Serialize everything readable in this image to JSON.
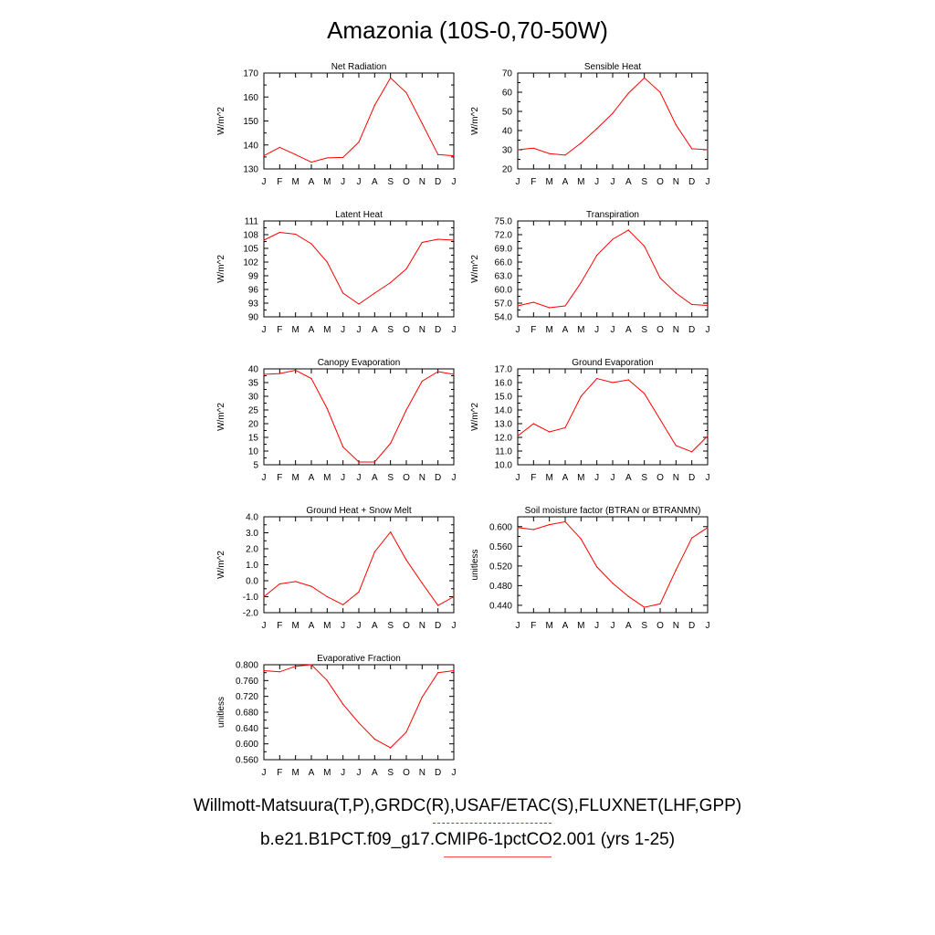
{
  "title": "Amazonia (10S-0,70-50W)",
  "legend": {
    "observations": "Willmott-Matsuura(T,P),GRDC(R),USAF/ETAC(S),FLUXNET(LHF,GPP)",
    "model": "b.e21.B1PCT.f09_g17.CMIP6-1pctCO2.001 (yrs 1-25)",
    "obs_color": "#4b4bd6",
    "model_color": "#ff0000"
  },
  "chart_data": [
    {
      "type": "line",
      "title": "Net Radiation",
      "ylabel": "W/m^2",
      "ylim": [
        130,
        170
      ],
      "yticks": [
        "130",
        "140",
        "150",
        "160",
        "170"
      ],
      "ytick_values": [
        130,
        140,
        150,
        160,
        170
      ],
      "categories": [
        "J",
        "F",
        "M",
        "A",
        "M",
        "J",
        "J",
        "A",
        "S",
        "O",
        "N",
        "D",
        "J"
      ],
      "series": [
        {
          "values": [
            135.5,
            139.0,
            136.0,
            132.8,
            134.6,
            134.8,
            141.2,
            156.5,
            168.0,
            161.8,
            149.0,
            136.0,
            135.5
          ],
          "color": "#ff0000"
        }
      ]
    },
    {
      "type": "line",
      "title": "Sensible Heat",
      "ylabel": "W/m^2",
      "ylim": [
        20,
        70
      ],
      "yticks": [
        "20",
        "30",
        "40",
        "50",
        "60",
        "70"
      ],
      "ytick_values": [
        20,
        30,
        40,
        50,
        60,
        70
      ],
      "categories": [
        "J",
        "F",
        "M",
        "A",
        "M",
        "J",
        "J",
        "A",
        "S",
        "O",
        "N",
        "D",
        "J"
      ],
      "series": [
        {
          "values": [
            30.0,
            30.8,
            28.0,
            27.2,
            33.5,
            41.0,
            49.0,
            59.5,
            67.5,
            60.0,
            43.0,
            30.5,
            30.0
          ],
          "color": "#ff0000"
        }
      ]
    },
    {
      "type": "line",
      "title": "Latent Heat",
      "ylabel": "W/m^2",
      "ylim": [
        90,
        111
      ],
      "yticks": [
        "90",
        "93",
        "96",
        "99",
        "102",
        "105",
        "108",
        "111"
      ],
      "ytick_values": [
        90,
        93,
        96,
        99,
        102,
        105,
        108,
        111
      ],
      "categories": [
        "J",
        "F",
        "M",
        "A",
        "M",
        "J",
        "J",
        "A",
        "S",
        "O",
        "N",
        "D",
        "J"
      ],
      "series": [
        {
          "values": [
            106.8,
            108.5,
            108.1,
            106.0,
            102.0,
            95.2,
            92.8,
            95.2,
            97.5,
            100.5,
            106.3,
            107.0,
            106.8
          ],
          "color": "#ff0000"
        }
      ]
    },
    {
      "type": "line",
      "title": "Transpiration",
      "ylabel": "W/m^2",
      "ylim": [
        54,
        75
      ],
      "yticks": [
        "54.0",
        "57.0",
        "60.0",
        "63.0",
        "66.0",
        "69.0",
        "72.0",
        "75.0"
      ],
      "ytick_values": [
        54,
        57,
        60,
        63,
        66,
        69,
        72,
        75
      ],
      "categories": [
        "J",
        "F",
        "M",
        "A",
        "M",
        "J",
        "J",
        "A",
        "S",
        "O",
        "N",
        "D",
        "J"
      ],
      "series": [
        {
          "values": [
            56.4,
            57.2,
            56.0,
            56.4,
            61.5,
            67.5,
            71.0,
            73.0,
            69.5,
            62.5,
            59.2,
            56.7,
            56.5
          ],
          "color": "#ff0000"
        }
      ]
    },
    {
      "type": "line",
      "title": "Canopy Evaporation",
      "ylabel": "W/m^2",
      "ylim": [
        5,
        40
      ],
      "yticks": [
        "5",
        "10",
        "15",
        "20",
        "25",
        "30",
        "35",
        "40"
      ],
      "ytick_values": [
        5,
        10,
        15,
        20,
        25,
        30,
        35,
        40
      ],
      "categories": [
        "J",
        "F",
        "M",
        "A",
        "M",
        "J",
        "J",
        "A",
        "S",
        "O",
        "N",
        "D",
        "J"
      ],
      "series": [
        {
          "values": [
            38.0,
            38.3,
            39.5,
            36.5,
            25.5,
            11.5,
            6.0,
            6.0,
            12.8,
            25.0,
            35.5,
            39.0,
            38.0
          ],
          "color": "#ff0000"
        }
      ]
    },
    {
      "type": "line",
      "title": "Ground Evaporation",
      "ylabel": "W/m^2",
      "ylim": [
        10,
        17
      ],
      "yticks": [
        "10.0",
        "11.0",
        "12.0",
        "13.0",
        "14.0",
        "15.0",
        "16.0",
        "17.0"
      ],
      "ytick_values": [
        10,
        11,
        12,
        13,
        14,
        15,
        16,
        17
      ],
      "categories": [
        "J",
        "F",
        "M",
        "A",
        "M",
        "J",
        "J",
        "A",
        "S",
        "O",
        "N",
        "D",
        "J"
      ],
      "series": [
        {
          "values": [
            12.1,
            13.0,
            12.4,
            12.7,
            15.0,
            16.3,
            16.0,
            16.2,
            15.2,
            13.3,
            11.4,
            10.95,
            12.1
          ],
          "color": "#ff0000"
        }
      ]
    },
    {
      "type": "line",
      "title": "Ground Heat + Snow Melt",
      "ylabel": "W/m^2",
      "ylim": [
        -2,
        4
      ],
      "yticks": [
        "-2.0",
        "-1.0",
        "0.0",
        "1.0",
        "2.0",
        "3.0",
        "4.0"
      ],
      "ytick_values": [
        -2,
        -1,
        0,
        1,
        2,
        3,
        4
      ],
      "categories": [
        "J",
        "F",
        "M",
        "A",
        "M",
        "J",
        "J",
        "A",
        "S",
        "O",
        "N",
        "D",
        "J"
      ],
      "series": [
        {
          "values": [
            -1.0,
            -0.2,
            -0.05,
            -0.35,
            -1.0,
            -1.5,
            -0.7,
            1.8,
            3.05,
            1.3,
            -0.15,
            -1.55,
            -1.0
          ],
          "color": "#ff0000"
        }
      ]
    },
    {
      "type": "line",
      "title": "Soil moisture factor (BTRAN or BTRANMN)",
      "ylabel": "unitless",
      "ylim": [
        0.425,
        0.62
      ],
      "yticks": [
        "0.440",
        "0.480",
        "0.520",
        "0.560",
        "0.600"
      ],
      "ytick_values": [
        0.44,
        0.48,
        0.52,
        0.56,
        0.6
      ],
      "categories": [
        "J",
        "F",
        "M",
        "A",
        "M",
        "J",
        "J",
        "A",
        "S",
        "O",
        "N",
        "D",
        "J"
      ],
      "series": [
        {
          "values": [
            0.598,
            0.594,
            0.604,
            0.61,
            0.575,
            0.518,
            0.485,
            0.458,
            0.436,
            0.443,
            0.512,
            0.577,
            0.598
          ],
          "color": "#ff0000"
        }
      ]
    },
    {
      "type": "line",
      "title": "Evaporative Fraction",
      "ylabel": "unitless",
      "ylim": [
        0.56,
        0.8
      ],
      "yticks": [
        "0.560",
        "0.600",
        "0.640",
        "0.680",
        "0.720",
        "0.760",
        "0.800"
      ],
      "ytick_values": [
        0.56,
        0.6,
        0.64,
        0.68,
        0.72,
        0.76,
        0.8
      ],
      "categories": [
        "J",
        "F",
        "M",
        "A",
        "M",
        "J",
        "J",
        "A",
        "S",
        "O",
        "N",
        "D",
        "J"
      ],
      "series": [
        {
          "values": [
            0.785,
            0.782,
            0.796,
            0.8,
            0.76,
            0.7,
            0.653,
            0.612,
            0.59,
            0.63,
            0.718,
            0.78,
            0.785
          ],
          "color": "#ff0000"
        }
      ]
    }
  ]
}
